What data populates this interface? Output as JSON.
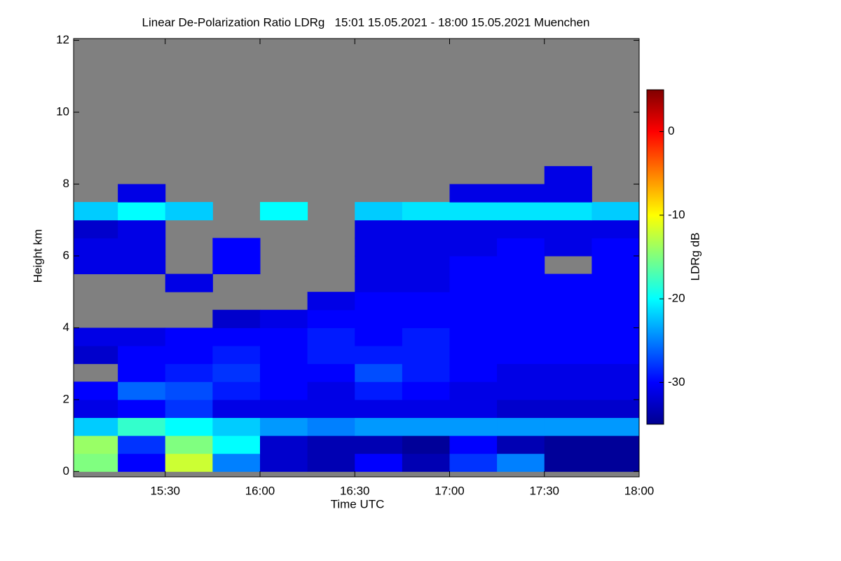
{
  "chart_data": {
    "type": "heatmap",
    "title": "Linear De-Polarization Ratio LDRg   15:01 15.05.2021 - 18:00 15.05.2021 Muenchen",
    "xlabel": "Time UTC",
    "ylabel": "Height km",
    "colorbar_label": "LDRg dB",
    "xlim": [
      "15:01",
      "18:00"
    ],
    "xticks": [
      "15:30",
      "16:00",
      "16:30",
      "17:00",
      "17:30",
      "18:00"
    ],
    "ylim": [
      -0.15,
      12.05
    ],
    "yticks": [
      0,
      2,
      4,
      6,
      8,
      10,
      12
    ],
    "zlim": [
      -35,
      5
    ],
    "zticks": [
      0,
      -10,
      -20,
      -30
    ],
    "colormap": "jet",
    "missing_color": "#808080",
    "x_bins": [
      "15:00",
      "15:15",
      "15:30",
      "15:45",
      "16:00",
      "16:15",
      "16:30",
      "16:45",
      "17:00",
      "17:15",
      "17:30",
      "17:45",
      "18:00"
    ],
    "y_bins": [
      0,
      0.5,
      1,
      1.5,
      2,
      2.5,
      3,
      3.5,
      4,
      4.5,
      5,
      5.5,
      6,
      6.5,
      7,
      7.5,
      8,
      8.5
    ],
    "z": [
      [
        -15,
        -30,
        -12,
        -25,
        -32,
        -33,
        -30,
        -33,
        -28,
        -25,
        -34,
        -34
      ],
      [
        -14,
        -28,
        -15,
        -20,
        -32,
        -33,
        -33,
        -34,
        -30,
        -33,
        -34,
        -34
      ],
      [
        -22,
        -18,
        -20,
        -22,
        -24,
        -25,
        -24,
        -24,
        -24,
        -24,
        -24,
        -24
      ],
      [
        -31,
        -30,
        -28,
        -31,
        -31,
        -31,
        -31,
        -31,
        -31,
        -32,
        -32,
        -32
      ],
      [
        -30,
        -26,
        -27,
        -29,
        -30,
        -31,
        -29,
        -30,
        -31,
        -31,
        -31,
        -31
      ],
      [
        null,
        -30,
        -29,
        -28,
        -30,
        -30,
        -27,
        -29,
        -30,
        -31,
        -31,
        -31
      ],
      [
        -32,
        -30,
        -30,
        -29,
        -30,
        -29,
        -29,
        -29,
        -30,
        -30,
        -30,
        -30
      ],
      [
        -31,
        -31,
        -30,
        -30,
        -30,
        -29,
        -30,
        -29,
        -30,
        -30,
        -30,
        -30
      ],
      [
        null,
        null,
        null,
        -32,
        -31,
        -30,
        -30,
        -30,
        -30,
        -30,
        -30,
        -30
      ],
      [
        null,
        null,
        null,
        null,
        null,
        -31,
        -30,
        -30,
        -30,
        -30,
        -30,
        -30
      ],
      [
        null,
        null,
        -31,
        null,
        null,
        null,
        -31,
        -31,
        -30,
        -30,
        -30,
        -30
      ],
      [
        -31,
        -31,
        null,
        -30,
        null,
        null,
        -31,
        -31,
        -30,
        -30,
        null,
        -30
      ],
      [
        -31,
        -31,
        null,
        -30,
        null,
        null,
        -31,
        -31,
        -31,
        -30,
        -31,
        -30
      ],
      [
        -32,
        -31,
        null,
        null,
        null,
        null,
        -31,
        -31,
        -31,
        -31,
        -31,
        -31
      ],
      [
        -22,
        -20,
        -22,
        null,
        -20,
        null,
        -22,
        -21,
        -21,
        -21,
        -21,
        -22
      ],
      [
        null,
        -31,
        null,
        null,
        null,
        null,
        null,
        null,
        -31,
        -31,
        -31,
        null
      ],
      [
        null,
        null,
        null,
        null,
        null,
        null,
        null,
        null,
        null,
        null,
        -31,
        null
      ]
    ]
  }
}
